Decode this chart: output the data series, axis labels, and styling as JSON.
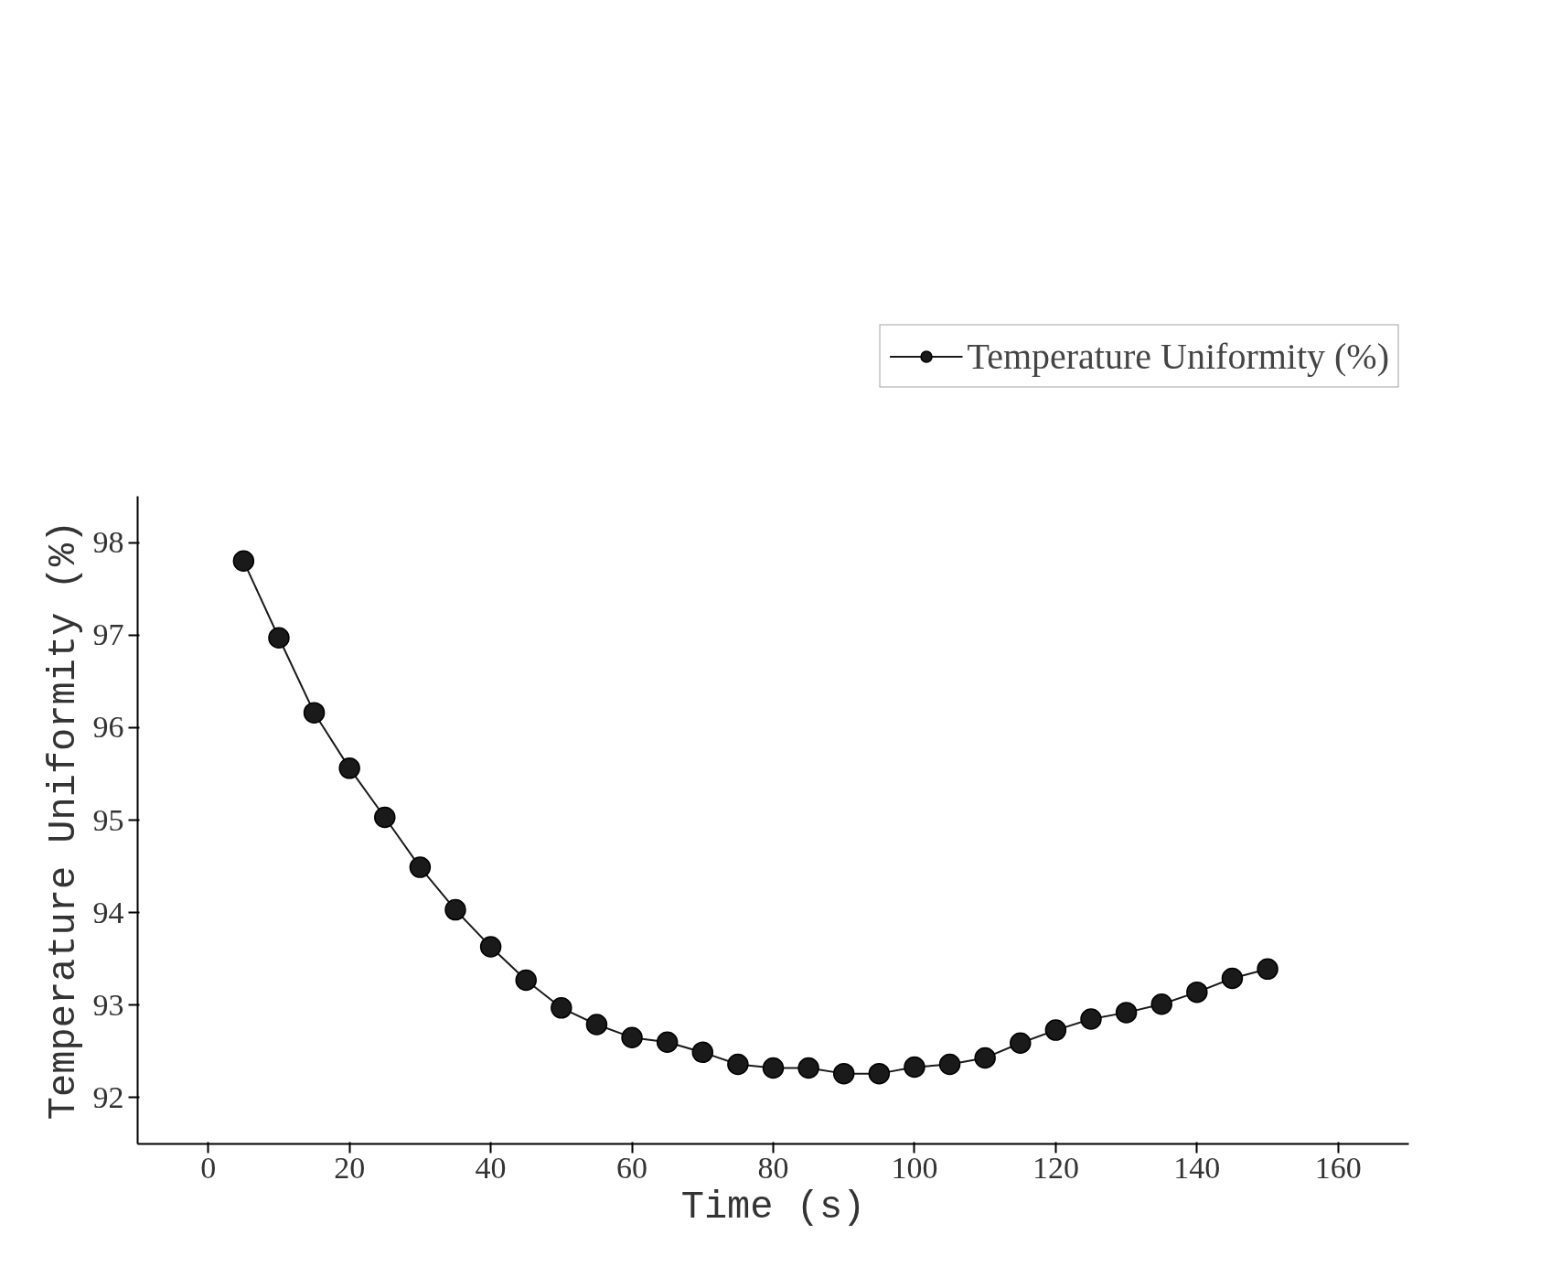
{
  "chart_data": {
    "type": "line",
    "xlabel": "Time (s)",
    "ylabel": "Temperature Uniformity (%)",
    "x": [
      5,
      10,
      15,
      20,
      25,
      30,
      35,
      40,
      45,
      50,
      55,
      60,
      65,
      70,
      75,
      80,
      85,
      90,
      95,
      100,
      105,
      110,
      115,
      120,
      125,
      130,
      135,
      140,
      145,
      150
    ],
    "series": [
      {
        "name": "Temperature Uniformity (%)",
        "color": "#1a1a1a",
        "values": [
          97.8,
          96.97,
          96.16,
          95.56,
          95.03,
          94.49,
          94.03,
          93.63,
          93.27,
          92.97,
          92.79,
          92.65,
          92.6,
          92.49,
          92.36,
          92.32,
          92.32,
          92.26,
          92.26,
          92.33,
          92.36,
          92.43,
          92.59,
          92.73,
          92.85,
          92.92,
          93.01,
          93.14,
          93.29,
          93.39
        ]
      }
    ],
    "xlim": [
      -10,
      170
    ],
    "ylim": [
      91.5,
      98.5
    ],
    "xticks": [
      0,
      20,
      40,
      60,
      80,
      100,
      120,
      140,
      160
    ],
    "yticks": [
      92,
      93,
      94,
      95,
      96,
      97,
      98
    ],
    "marker": "circle",
    "line_style": "solid",
    "grid": false,
    "legend": "top right"
  }
}
